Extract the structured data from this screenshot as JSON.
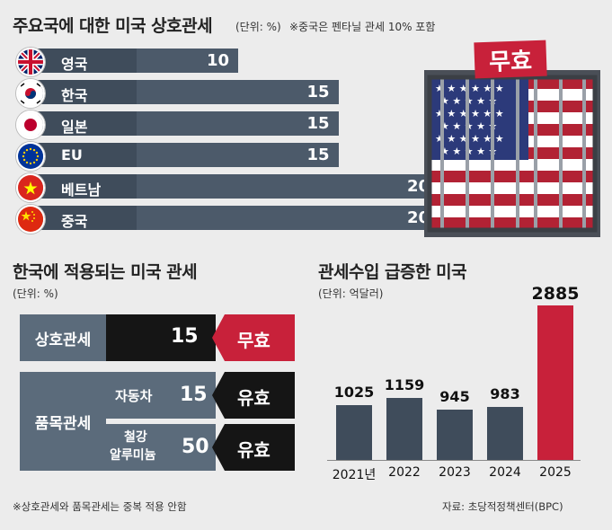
{
  "top": {
    "title": "주요국에 대한 미국 상호관세",
    "unit": "(단위: %)",
    "note": "※중국은 펜타닐 관세 10% 포함",
    "stamp": "무효"
  },
  "chart_data": [
    {
      "type": "bar",
      "title": "주요국에 대한 미국 상호관세",
      "categories": [
        "영국",
        "한국",
        "일본",
        "EU",
        "베트남",
        "중국"
      ],
      "values": [
        10,
        15,
        15,
        15,
        20,
        20
      ],
      "xlim": [
        0,
        20
      ]
    },
    {
      "type": "bar",
      "title": "관세수입 급증한 미국",
      "categories": [
        "2021년",
        "2022",
        "2023",
        "2024",
        "2025"
      ],
      "values": [
        1025,
        1159,
        945,
        983,
        2885
      ],
      "ylim": [
        0,
        2885
      ],
      "colors": [
        "#3f4c5b",
        "#3f4c5b",
        "#3f4c5b",
        "#3f4c5b",
        "#c8213a"
      ]
    }
  ],
  "middle": {
    "title": "한국에 적용되는 미국 관세",
    "unit": "(단위: %)",
    "reciprocal_label": "상호관세",
    "reciprocal_value": "15",
    "reciprocal_status": "무효",
    "item_label": "품목관세",
    "auto_label": "자동차",
    "auto_value": "15",
    "auto_status": "유효",
    "steel_label_1": "철강",
    "steel_label_2": "알루미늄",
    "steel_value": "50",
    "steel_status": "유효",
    "footnote": "※상호관세와 품목관세는 중복 적용 안함"
  },
  "right": {
    "title": "관세수입 급증한 미국",
    "unit": "(단위: 억달러)",
    "source": "자료: 초당적정책센터(BPC)"
  },
  "colors": {
    "bar_dark": "#3f4c5b",
    "accent_red": "#c8213a",
    "row_grey": "#5b6b7b"
  }
}
